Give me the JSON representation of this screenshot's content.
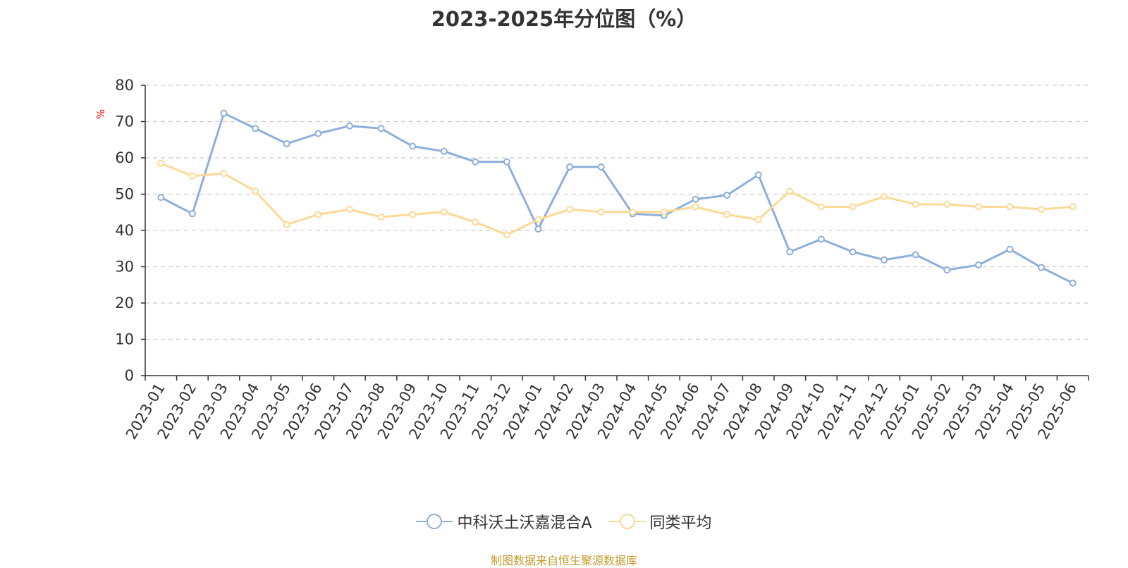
{
  "title": "2023-2025年分位图（%）",
  "footer": "制图数据来自恒生聚源数据库",
  "chart_data": {
    "type": "line",
    "ylabel": "%",
    "ylim": [
      0,
      80
    ],
    "yticks": [
      0,
      10,
      20,
      30,
      40,
      50,
      60,
      70,
      80
    ],
    "grid": true,
    "legend_position": "bottom-center",
    "categories": [
      "2023-01",
      "2023-02",
      "2023-03",
      "2023-04",
      "2023-05",
      "2023-06",
      "2023-07",
      "2023-08",
      "2023-09",
      "2023-10",
      "2023-11",
      "2023-12",
      "2024-01",
      "2024-02",
      "2024-03",
      "2024-04",
      "2024-05",
      "2024-06",
      "2024-07",
      "2024-08",
      "2024-09",
      "2024-10",
      "2024-11",
      "2024-12",
      "2025-01",
      "2025-02",
      "2025-03",
      "2025-04",
      "2025-05",
      "2025-06"
    ],
    "series": [
      {
        "name": "中科沃土沃嘉混合A",
        "color": "#8eaedb",
        "values": [
          49.1,
          44.6,
          72.3,
          68.1,
          63.9,
          66.7,
          68.8,
          68.1,
          63.2,
          61.8,
          58.9,
          58.9,
          40.4,
          57.5,
          57.5,
          44.6,
          44.1,
          48.6,
          49.7,
          55.3,
          34.1,
          37.6,
          34.1,
          31.9,
          33.3,
          29.1,
          30.5,
          34.8,
          29.8,
          25.5
        ]
      },
      {
        "name": "同类平均",
        "color": "#fcd994",
        "values": [
          58.5,
          55.0,
          55.7,
          50.8,
          41.6,
          44.4,
          45.8,
          43.7,
          44.4,
          45.1,
          42.3,
          38.8,
          43.0,
          45.8,
          45.1,
          45.1,
          45.1,
          46.5,
          44.4,
          43.0,
          50.8,
          46.5,
          46.5,
          49.3,
          47.2,
          47.2,
          46.5,
          46.5,
          45.8,
          46.5
        ]
      }
    ]
  }
}
